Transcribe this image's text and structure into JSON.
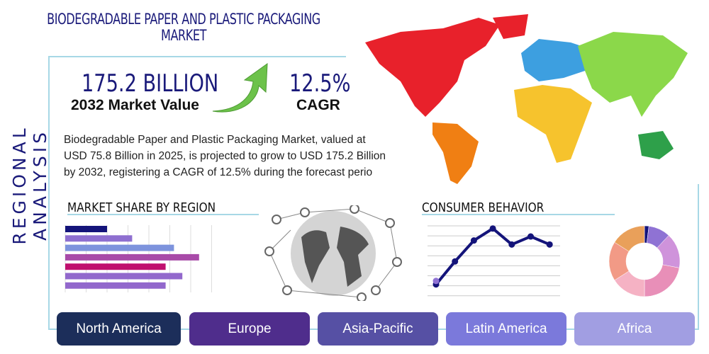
{
  "title": "BIODEGRADABLE PAPER AND PLASTIC PACKAGING MARKET",
  "side_label": "REGIONAL ANALYSIS",
  "market_value": {
    "value": "175.2 BILLION",
    "label": "2032 Market Value"
  },
  "cagr": {
    "value": "12.5%",
    "label": "CAGR"
  },
  "description": [
    "Biodegradable Paper and Plastic Packaging Market, valued at",
    "USD 75.8 Billion in 2025, is projected to grow to USD 175.2 Billion",
    "by 2032, registering a CAGR of 12.5% during the forecast perio"
  ],
  "sections": {
    "market_share": "MARKET SHARE BY REGION",
    "consumer": "CONSUMER BEHAVIOR"
  },
  "regions": [
    "North America",
    "Europe",
    "Asia-Pacific",
    "Latin America",
    "Africa"
  ],
  "colors": {
    "navy": "#1a1a7a",
    "accent_line": "#a7d8e6",
    "arrow": "#6cc24a",
    "buttons": [
      "#1c2e5a",
      "#4f2d8c",
      "#5650a4",
      "#7b79db",
      "#a19ee2"
    ]
  },
  "chart_data": [
    {
      "type": "bar",
      "orientation": "horizontal",
      "values": [
        2.0,
        3.2,
        5.2,
        6.4,
        4.8,
        5.6,
        4.8
      ],
      "colors": [
        "#14147a",
        "#8e6fd0",
        "#7d93dd",
        "#a84aa8",
        "#c0106e",
        "#9268cc",
        "#9268cc"
      ],
      "xlim": [
        0,
        7
      ],
      "grid": true
    },
    {
      "type": "line",
      "x": [
        1,
        2,
        3,
        4,
        5,
        6,
        7
      ],
      "values": [
        0.8,
        3.1,
        5.2,
        6.4,
        4.8,
        5.6,
        4.8
      ],
      "extra_point": {
        "x": 1,
        "y": 1.15
      },
      "ylim": [
        0,
        7
      ],
      "grid": true
    },
    {
      "type": "pie",
      "donut": true,
      "values": [
        2,
        10,
        16,
        22,
        16,
        18,
        16
      ],
      "colors": [
        "#14147a",
        "#8f72d4",
        "#cf93db",
        "#e88fb8",
        "#f5b2c4",
        "#f29a86",
        "#e9a05a"
      ]
    }
  ]
}
